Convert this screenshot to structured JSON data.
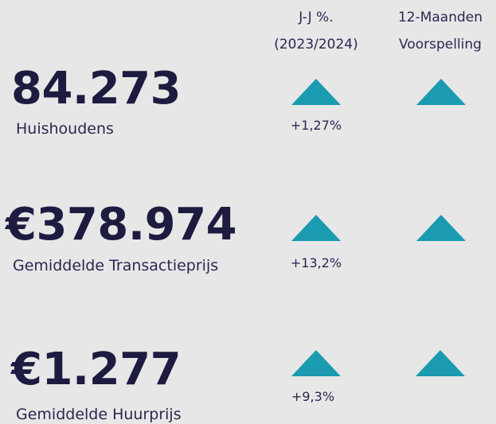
{
  "header": {
    "change_title": "J-J %.",
    "change_period": "(2023/2024)",
    "forecast_title": "12-Maanden",
    "forecast_subtitle": "Voorspelling"
  },
  "rows": [
    {
      "value": "84.273",
      "label": "Huishoudens",
      "change": "+1,27%"
    },
    {
      "value": "€378.974",
      "label": "Gemiddelde Transactieprijs",
      "change": "+13,2%"
    },
    {
      "value": "€1.277",
      "label": "Gemiddelde Huurprijs",
      "change": "+9,3%"
    }
  ]
}
